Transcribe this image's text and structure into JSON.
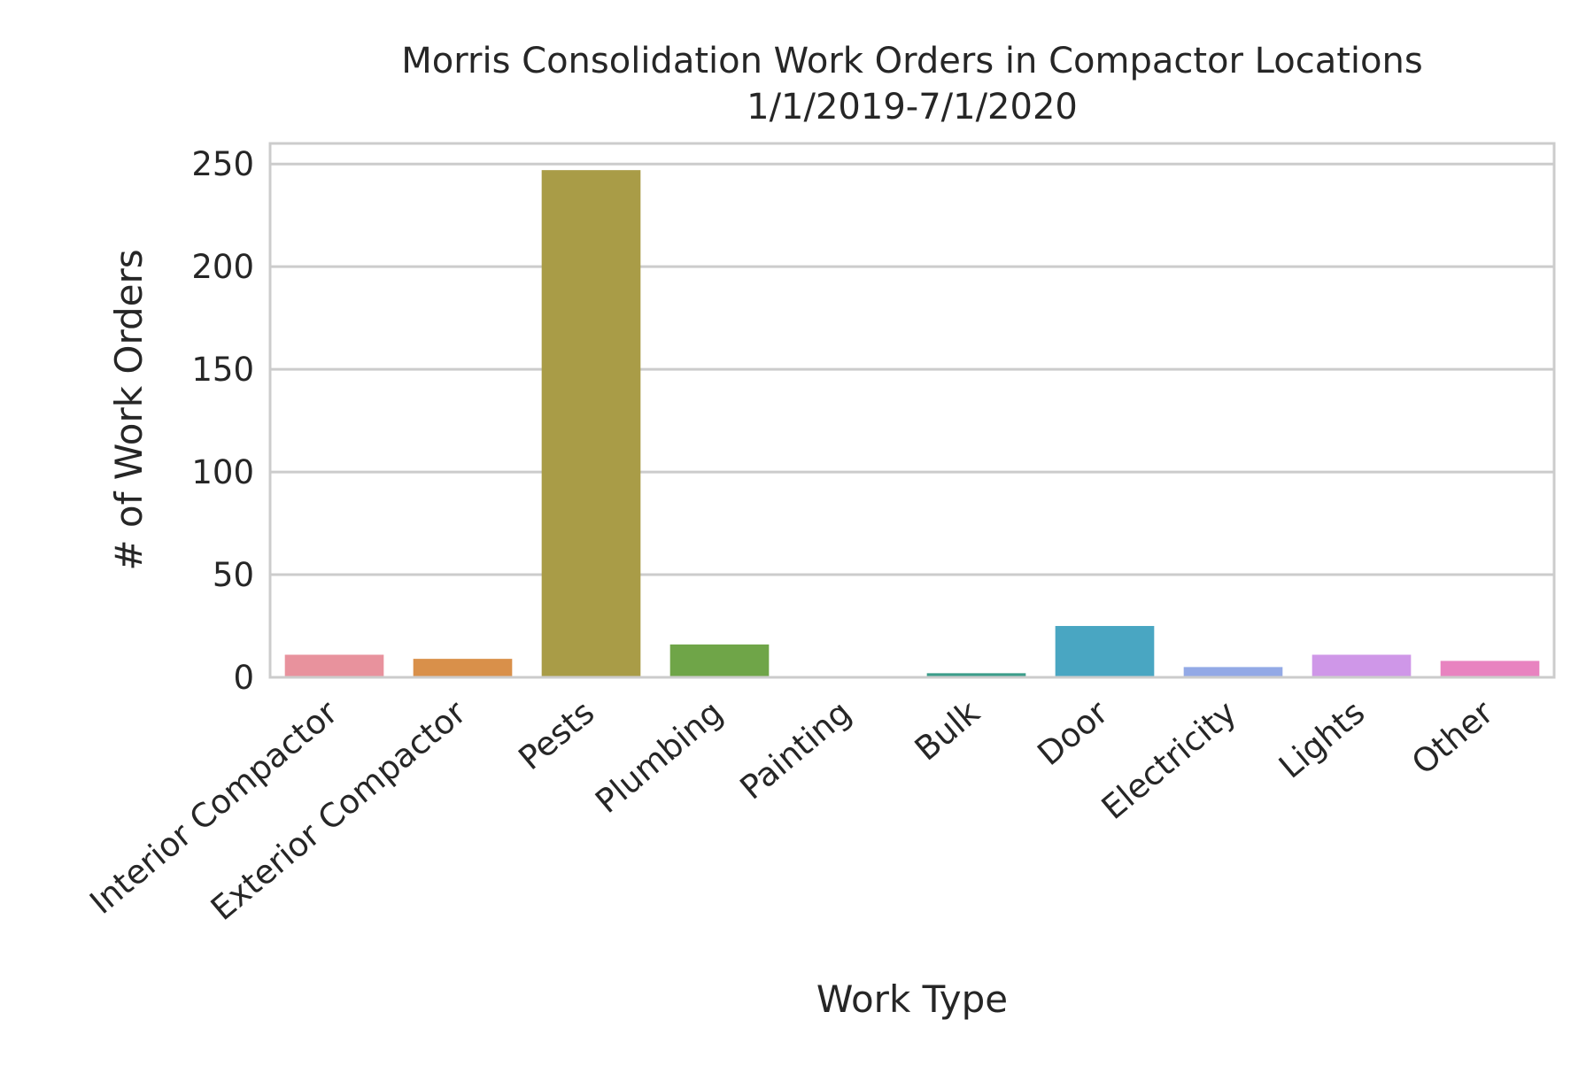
{
  "chart_data": {
    "type": "bar",
    "title": [
      "Morris Consolidation Work Orders in Compactor Locations",
      "1/1/2019-7/1/2020"
    ],
    "xlabel": "Work Type",
    "ylabel": "# of Work Orders",
    "categories": [
      "Interior Compactor",
      "Exterior Compactor",
      "Pests",
      "Plumbing",
      "Painting",
      "Bulk",
      "Door",
      "Electricity",
      "Lights",
      "Other"
    ],
    "values": [
      11,
      9,
      247,
      16,
      0,
      2,
      25,
      5,
      11,
      8
    ],
    "colors": [
      "#e8929d",
      "#d9904a",
      "#a99c47",
      "#6fa548",
      "#3f9e7a",
      "#3c9d8a",
      "#49a6c2",
      "#93a9e6",
      "#cf97e8",
      "#e883c0"
    ],
    "ylim": [
      0,
      260
    ],
    "yticks": [
      0,
      50,
      100,
      150,
      200,
      250
    ],
    "grid": true,
    "legend": "none"
  }
}
